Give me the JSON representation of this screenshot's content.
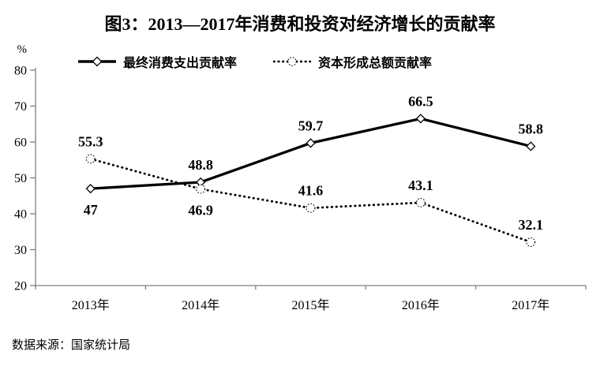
{
  "figure": {
    "title": "图3：2013—2017年消费和投资对经济增长的贡献率",
    "source_note": "数据来源：国家统计局"
  },
  "chart_data": {
    "type": "line",
    "title": "图3：2013—2017年消费和投资对经济增长的贡献率",
    "categories": [
      "2013年",
      "2014年",
      "2015年",
      "2016年",
      "2017年"
    ],
    "series": [
      {
        "name": "最终消费支出贡献率",
        "line_style": "solid",
        "marker": "diamond",
        "color": "#000000",
        "values": [
          47,
          48.8,
          59.7,
          66.5,
          58.8
        ],
        "label_position": [
          "below",
          "above",
          "above",
          "above",
          "above"
        ]
      },
      {
        "name": "资本形成总额贡献率",
        "line_style": "dotted",
        "marker": "circle",
        "color": "#000000",
        "values": [
          55.3,
          46.9,
          41.6,
          43.1,
          32.1
        ],
        "label_position": [
          "above",
          "below",
          "above",
          "above",
          "above"
        ]
      }
    ],
    "ylabel": "%",
    "ylim": [
      20,
      80
    ],
    "y_ticks": [
      20,
      30,
      40,
      50,
      60,
      70,
      80
    ],
    "grid": false,
    "legend_position": "top",
    "axis_color": "#808080",
    "text_color": "#000000",
    "source_note": "数据来源：国家统计局"
  }
}
